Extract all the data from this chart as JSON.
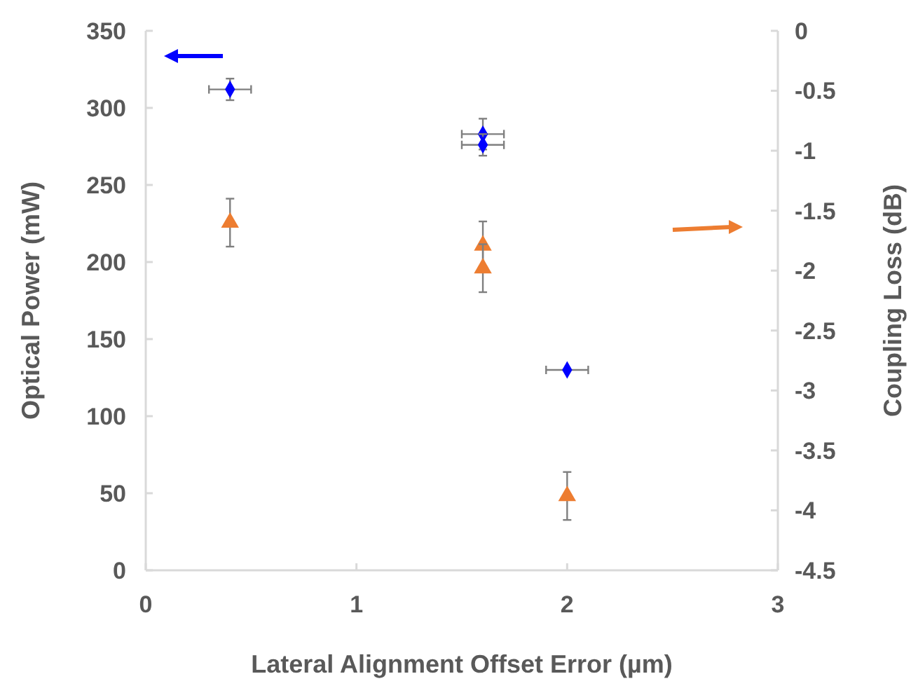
{
  "chart_data": {
    "type": "scatter",
    "xlabel": "Lateral Alignment Offset Error (µm)",
    "ylabel": "Optical Power (mW)",
    "y2label": "Coupling Loss (dB)",
    "xlim": [
      0,
      3
    ],
    "xticks": [
      0,
      1,
      2,
      3
    ],
    "ylim": [
      0,
      350
    ],
    "yticks": [
      0,
      50,
      100,
      150,
      200,
      250,
      300,
      350
    ],
    "y2lim": [
      -4.5,
      0
    ],
    "y2ticks": [
      -4.5,
      -4,
      -3.5,
      -3,
      -2.5,
      -2,
      -1.5,
      -1,
      -0.5,
      0
    ],
    "grid": false,
    "series": [
      {
        "color": "#0000ff",
        "marker": "diamond",
        "x": [
          0.4,
          1.6,
          1.6,
          2.0
        ],
        "values": [
          312,
          283,
          276,
          130
        ],
        "errors": [
          7,
          10,
          7,
          null
        ],
        "xerrors": [
          0.1,
          0.1,
          0.1,
          0.1
        ]
      },
      {
        "color": "#ed7d31",
        "marker": "triangle",
        "axis": "y2",
        "x": [
          0.4,
          1.6,
          1.6,
          2.0
        ],
        "values": [
          -1.6,
          -1.79,
          -1.98,
          -3.88
        ],
        "errors": [
          0.2,
          0.2,
          0.2,
          0.2
        ]
      }
    ]
  }
}
